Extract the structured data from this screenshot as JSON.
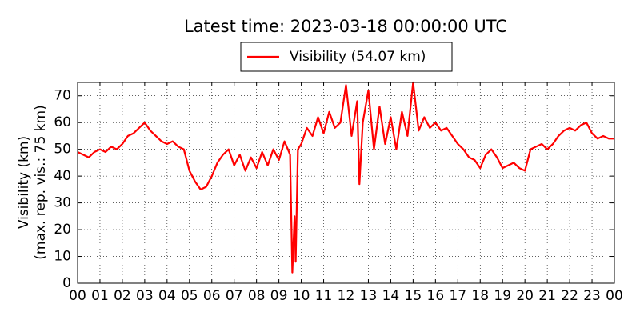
{
  "chart_data": {
    "type": "line",
    "title": "Latest time: 2023-03-18 00:00:00 UTC",
    "ylabel": [
      "Visibility (km)",
      "(max. rep. vis.: 75 km)"
    ],
    "x": [
      0,
      0.25,
      0.5,
      0.75,
      1,
      1.25,
      1.5,
      1.75,
      2,
      2.25,
      2.5,
      2.75,
      3,
      3.25,
      3.5,
      3.75,
      4,
      4.25,
      4.5,
      4.75,
      5,
      5.25,
      5.5,
      5.75,
      6,
      6.25,
      6.5,
      6.75,
      7,
      7.25,
      7.5,
      7.75,
      8,
      8.25,
      8.5,
      8.75,
      9,
      9.25,
      9.5,
      9.6,
      9.7,
      9.75,
      9.85,
      10,
      10.25,
      10.5,
      10.75,
      11,
      11.25,
      11.5,
      11.75,
      12,
      12.25,
      12.5,
      12.6,
      12.75,
      13,
      13.25,
      13.5,
      13.75,
      14,
      14.25,
      14.5,
      14.75,
      15,
      15.25,
      15.5,
      15.75,
      16,
      16.25,
      16.5,
      16.75,
      17,
      17.25,
      17.5,
      17.75,
      18,
      18.25,
      18.5,
      18.75,
      19,
      19.25,
      19.5,
      19.75,
      20,
      20.25,
      20.5,
      20.75,
      21,
      21.25,
      21.5,
      21.75,
      22,
      22.25,
      22.5,
      22.75,
      23,
      23.25,
      23.5,
      23.75,
      24
    ],
    "series": [
      {
        "name": "Visibility (54.07 km)",
        "color": "#ff0000",
        "values": [
          49,
          48,
          47,
          49,
          50,
          49,
          51,
          50,
          52,
          55,
          56,
          58,
          60,
          57,
          55,
          53,
          52,
          53,
          51,
          50,
          42,
          38,
          35,
          36,
          40,
          45,
          48,
          50,
          44,
          48,
          42,
          47,
          43,
          49,
          44,
          50,
          46,
          53,
          48,
          4,
          25,
          8,
          50,
          52,
          58,
          55,
          62,
          56,
          64,
          58,
          60,
          74,
          55,
          68,
          37,
          60,
          72,
          50,
          66,
          52,
          62,
          50,
          64,
          55,
          75,
          57,
          62,
          58,
          60,
          57,
          58,
          55,
          52,
          50,
          47,
          46,
          43,
          48,
          50,
          47,
          43,
          44,
          45,
          43,
          42,
          50,
          51,
          52,
          50,
          52,
          55,
          57,
          58,
          57,
          59,
          60,
          56,
          54,
          55,
          54,
          54
        ]
      }
    ],
    "xlim": [
      0,
      24
    ],
    "xticks": [
      {
        "value": 0,
        "label": "00"
      },
      {
        "value": 1,
        "label": "01"
      },
      {
        "value": 2,
        "label": "02"
      },
      {
        "value": 3,
        "label": "03"
      },
      {
        "value": 4,
        "label": "04"
      },
      {
        "value": 5,
        "label": "05"
      },
      {
        "value": 6,
        "label": "06"
      },
      {
        "value": 7,
        "label": "07"
      },
      {
        "value": 8,
        "label": "08"
      },
      {
        "value": 9,
        "label": "09"
      },
      {
        "value": 10,
        "label": "10"
      },
      {
        "value": 11,
        "label": "11"
      },
      {
        "value": 12,
        "label": "12"
      },
      {
        "value": 13,
        "label": "13"
      },
      {
        "value": 14,
        "label": "14"
      },
      {
        "value": 15,
        "label": "15"
      },
      {
        "value": 16,
        "label": "16"
      },
      {
        "value": 17,
        "label": "17"
      },
      {
        "value": 18,
        "label": "18"
      },
      {
        "value": 19,
        "label": "19"
      },
      {
        "value": 20,
        "label": "20"
      },
      {
        "value": 21,
        "label": "21"
      },
      {
        "value": 22,
        "label": "22"
      },
      {
        "value": 23,
        "label": "23"
      },
      {
        "value": 24,
        "label": "00"
      }
    ],
    "ylim": [
      0,
      75
    ],
    "yticks": [
      0,
      10,
      20,
      30,
      40,
      50,
      60,
      70
    ],
    "grid": true,
    "legend": "top"
  }
}
